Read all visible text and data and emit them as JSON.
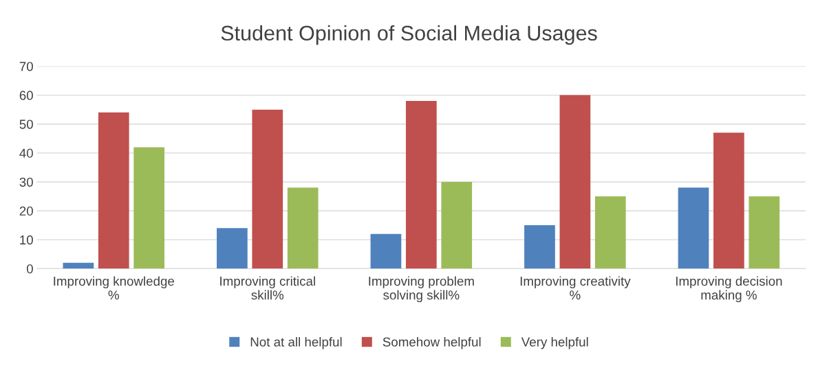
{
  "chart_data": {
    "type": "bar",
    "title": "Student Opinion of Social Media Usages",
    "categories": [
      "Improving knowledge %",
      "Improving critical skill%",
      "Improving problem solving skill%",
      "Improving creativity %",
      "Improving decision making %"
    ],
    "series": [
      {
        "name": "Not at all helpful",
        "color": "#4f81bd",
        "values": [
          2,
          14,
          12,
          15,
          28
        ]
      },
      {
        "name": "Somehow helpful",
        "color": "#c0504d",
        "values": [
          54,
          55,
          58,
          60,
          47
        ]
      },
      {
        "name": "Very helpful",
        "color": "#9bbb59",
        "values": [
          42,
          28,
          30,
          25,
          25
        ]
      }
    ],
    "ylim": [
      0,
      70
    ],
    "yticks": [
      0,
      10,
      20,
      30,
      40,
      50,
      60,
      70
    ],
    "grid": "y",
    "legend": "bottom"
  }
}
